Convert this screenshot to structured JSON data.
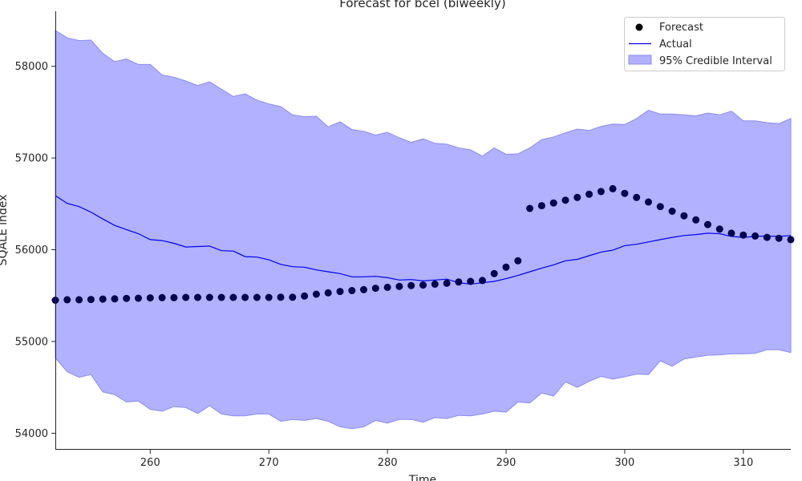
{
  "chart_data": {
    "type": "line",
    "title": "Forecast for bcel (biweekly)",
    "xlabel": "Time",
    "ylabel": "SQALE index",
    "xlim": [
      252,
      314
    ],
    "ylim": [
      53820,
      58600
    ],
    "xticks": [
      260,
      270,
      280,
      290,
      300,
      310
    ],
    "yticks": [
      54000,
      55000,
      56000,
      57000,
      58000
    ],
    "grid": false,
    "legend_position": "top-right",
    "colors": {
      "forecast": "#00004d",
      "actual": "#0000ee",
      "interval": "#b1b1ff",
      "interval_edge": "#8b8bf0"
    },
    "x": [
      252,
      253,
      254,
      255,
      256,
      257,
      258,
      259,
      260,
      261,
      262,
      263,
      264,
      265,
      266,
      267,
      268,
      269,
      270,
      271,
      272,
      273,
      274,
      275,
      276,
      277,
      278,
      279,
      280,
      281,
      282,
      283,
      284,
      285,
      286,
      287,
      288,
      289,
      290,
      291,
      292,
      293,
      294,
      295,
      296,
      297,
      298,
      299,
      300,
      301,
      302,
      303,
      304,
      305,
      306,
      307,
      308,
      309,
      310,
      311,
      312,
      313,
      314
    ],
    "series": [
      {
        "name": "Forecast",
        "kind": "scatter",
        "x": [
          252,
          253,
          254,
          255,
          256,
          257,
          258,
          259,
          260,
          261,
          262,
          263,
          264,
          265,
          266,
          267,
          268,
          269,
          270,
          271,
          272,
          273,
          274,
          275,
          276,
          277,
          278,
          279,
          280,
          281,
          282,
          283,
          284,
          285,
          286,
          287,
          288,
          289,
          290,
          291,
          292,
          293,
          294,
          295,
          296,
          297,
          298,
          299,
          300,
          301,
          302,
          303,
          304,
          305,
          306,
          307,
          308,
          309,
          310,
          311,
          312,
          313,
          314
        ],
        "values": [
          55450,
          55455,
          55455,
          55458,
          55462,
          55465,
          55470,
          55472,
          55475,
          55478,
          55478,
          55480,
          55480,
          55480,
          55480,
          55480,
          55480,
          55480,
          55480,
          55482,
          55482,
          55495,
          55515,
          55530,
          55545,
          55555,
          55565,
          55580,
          55590,
          55600,
          55610,
          55615,
          55625,
          55635,
          55648,
          55655,
          55665,
          55740,
          55810,
          55880,
          56450,
          56480,
          56510,
          56540,
          56570,
          56605,
          56635,
          56665,
          56615,
          56570,
          56520,
          56470,
          56420,
          56370,
          56325,
          56275,
          56225,
          56180,
          56160,
          56150,
          56135,
          56125,
          56110
        ]
      },
      {
        "name": "Actual",
        "kind": "line",
        "x": [
          252,
          253,
          254,
          255,
          256,
          257,
          258,
          259,
          260,
          261,
          262,
          263,
          264,
          265,
          266,
          267,
          268,
          269,
          270,
          271,
          272,
          273,
          274,
          275,
          276,
          277,
          278,
          279,
          280,
          281,
          282,
          283,
          284,
          285,
          286,
          287,
          288,
          289,
          290,
          291,
          292,
          293,
          294,
          295,
          296,
          297,
          298,
          299,
          300,
          301,
          302,
          303,
          304,
          305,
          306,
          307,
          308,
          309,
          310,
          311,
          312,
          313,
          314
        ],
        "values": [
          56590,
          56505,
          56470,
          56410,
          56335,
          56265,
          56220,
          56175,
          56110,
          56100,
          56070,
          56030,
          56035,
          56040,
          55990,
          55985,
          55925,
          55920,
          55890,
          55840,
          55815,
          55810,
          55780,
          55760,
          55740,
          55705,
          55705,
          55710,
          55695,
          55670,
          55675,
          55660,
          55670,
          55680,
          55640,
          55625,
          55640,
          55655,
          55685,
          55720,
          55760,
          55800,
          55835,
          55880,
          55895,
          55935,
          55975,
          55995,
          56045,
          56060,
          56085,
          56110,
          56135,
          56155,
          56165,
          56180,
          56175,
          56145,
          56135,
          56145,
          56150,
          56145,
          56155
        ]
      },
      {
        "name": "95% Credible Interval",
        "kind": "band",
        "x": [
          252,
          253,
          254,
          255,
          256,
          257,
          258,
          259,
          260,
          261,
          262,
          263,
          264,
          265,
          266,
          267,
          268,
          269,
          270,
          271,
          272,
          273,
          274,
          275,
          276,
          277,
          278,
          279,
          280,
          281,
          282,
          283,
          284,
          285,
          286,
          287,
          288,
          289,
          290,
          291,
          292,
          293,
          294,
          295,
          296,
          297,
          298,
          299,
          300,
          301,
          302,
          303,
          304,
          305,
          306,
          307,
          308,
          309,
          310,
          311,
          312,
          313,
          314
        ],
        "upper": [
          58390,
          58310,
          58280,
          58285,
          58140,
          58050,
          58080,
          58020,
          58020,
          57905,
          57880,
          57840,
          57790,
          57830,
          57750,
          57670,
          57700,
          57630,
          57590,
          57560,
          57470,
          57450,
          57455,
          57340,
          57395,
          57310,
          57290,
          57250,
          57280,
          57220,
          57170,
          57210,
          57160,
          57150,
          57110,
          57090,
          57020,
          57110,
          57040,
          57045,
          57110,
          57200,
          57230,
          57275,
          57315,
          57300,
          57345,
          57370,
          57365,
          57430,
          57520,
          57480,
          57480,
          57470,
          57460,
          57490,
          57470,
          57510,
          57405,
          57405,
          57385,
          57375,
          57430
        ],
        "lower": [
          54820,
          54670,
          54610,
          54640,
          54450,
          54420,
          54340,
          54350,
          54260,
          54240,
          54290,
          54280,
          54215,
          54300,
          54210,
          54190,
          54190,
          54210,
          54210,
          54130,
          54150,
          54140,
          54160,
          54130,
          54070,
          54050,
          54070,
          54140,
          54110,
          54150,
          54150,
          54120,
          54170,
          54160,
          54195,
          54190,
          54210,
          54240,
          54230,
          54340,
          54330,
          54440,
          54405,
          54560,
          54500,
          54565,
          54620,
          54590,
          54615,
          54645,
          54640,
          54790,
          54730,
          54810,
          54830,
          54850,
          54855,
          54865,
          54865,
          54870,
          54910,
          54910,
          54880
        ]
      }
    ]
  }
}
